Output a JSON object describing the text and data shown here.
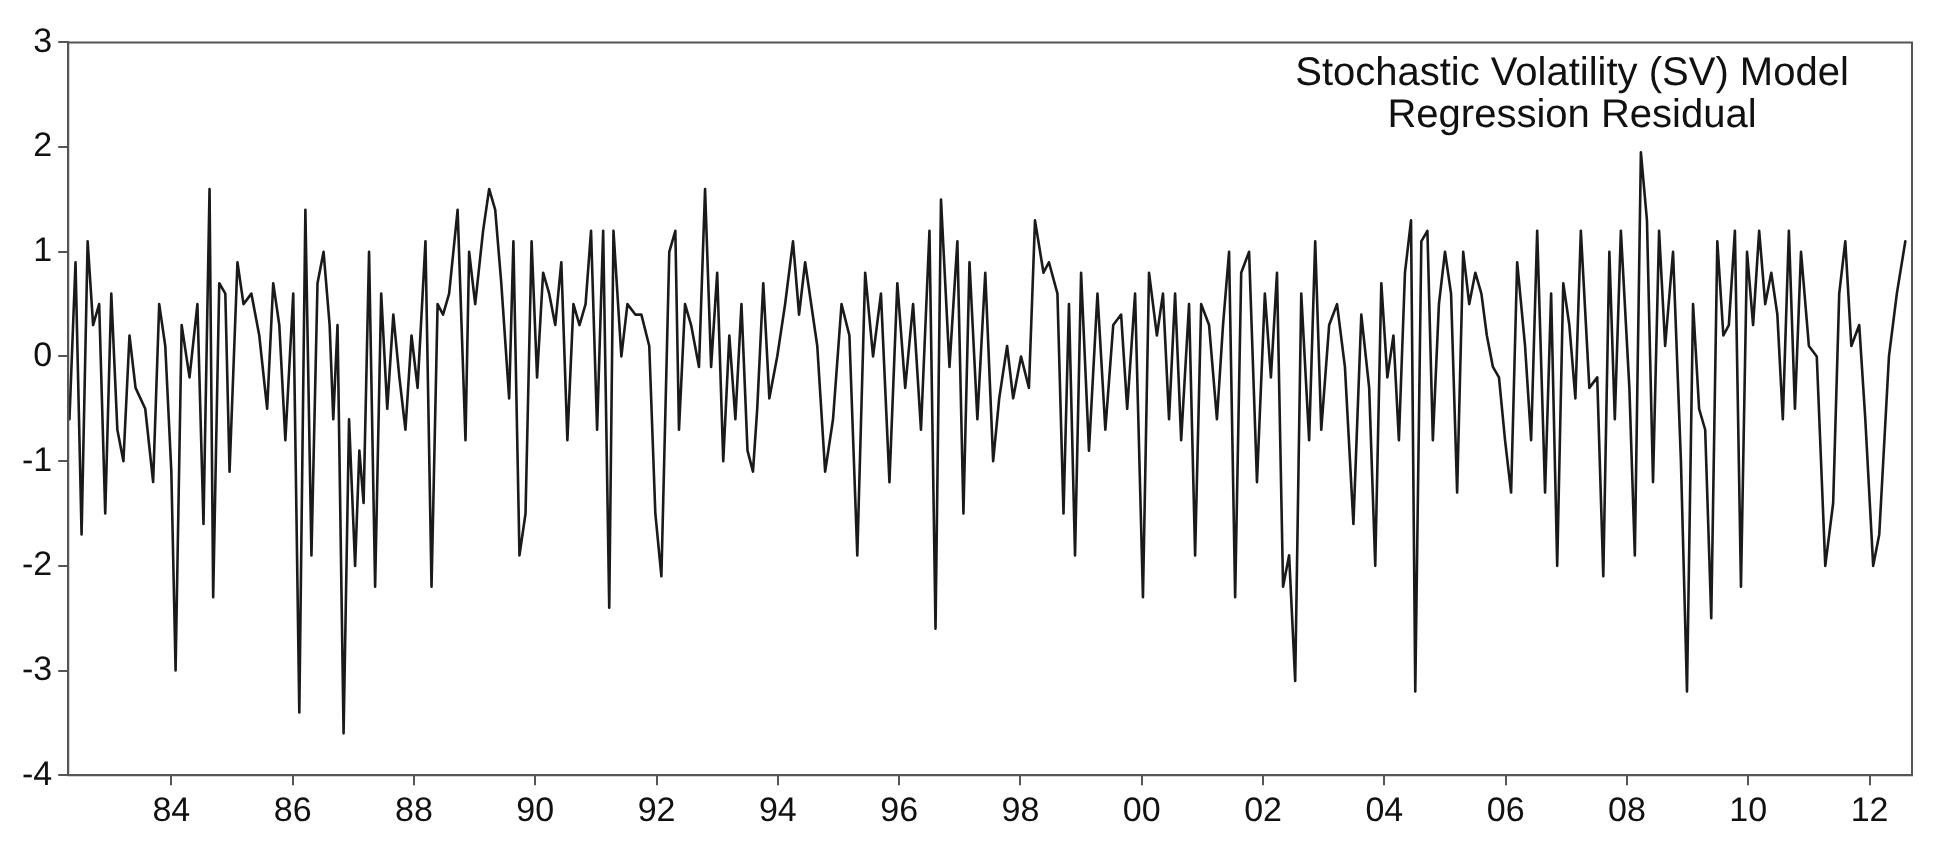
{
  "chart_data": {
    "type": "line",
    "annotations": [
      "Stochastic Volatility (SV) Model",
      "Regression Residual"
    ],
    "x": [
      1982.32,
      1982.42,
      1982.52,
      1982.62,
      1982.71,
      1982.81,
      1982.91,
      1983.01,
      1983.11,
      1983.21,
      1983.31,
      1983.41,
      1983.57,
      1983.7,
      1983.8,
      1983.9,
      1984.0,
      1984.07,
      1984.17,
      1984.3,
      1984.43,
      1984.53,
      1984.63,
      1984.69,
      1984.79,
      1984.89,
      1984.96,
      1985.09,
      1985.19,
      1985.32,
      1985.45,
      1985.58,
      1985.68,
      1985.78,
      1985.88,
      1986.01,
      1986.11,
      1986.21,
      1986.31,
      1986.41,
      1986.51,
      1986.61,
      1986.67,
      1986.74,
      1986.84,
      1986.93,
      1987.03,
      1987.1,
      1987.17,
      1987.26,
      1987.36,
      1987.46,
      1987.56,
      1987.66,
      1987.76,
      1987.86,
      1987.96,
      1988.06,
      1988.19,
      1988.29,
      1988.39,
      1988.48,
      1988.58,
      1988.72,
      1988.85,
      1988.91,
      1989.01,
      1989.14,
      1989.24,
      1989.34,
      1989.44,
      1989.57,
      1989.64,
      1989.74,
      1989.84,
      1989.94,
      1990.03,
      1990.13,
      1990.23,
      1990.33,
      1990.43,
      1990.53,
      1990.63,
      1990.73,
      1990.83,
      1990.92,
      1991.02,
      1991.12,
      1991.22,
      1991.29,
      1991.42,
      1991.52,
      1991.65,
      1991.75,
      1991.88,
      1991.98,
      1992.08,
      1992.21,
      1992.31,
      1992.37,
      1992.47,
      1992.57,
      1992.7,
      1992.8,
      1992.9,
      1993.0,
      1993.1,
      1993.2,
      1993.3,
      1993.4,
      1993.5,
      1993.59,
      1993.66,
      1993.76,
      1993.86,
      1993.99,
      1994.12,
      1994.25,
      1994.35,
      1994.45,
      1994.65,
      1994.78,
      1994.91,
      1995.05,
      1995.18,
      1995.31,
      1995.44,
      1995.57,
      1995.7,
      1995.84,
      1995.97,
      1996.1,
      1996.23,
      1996.36,
      1996.5,
      1996.6,
      1996.69,
      1996.83,
      1996.96,
      1997.06,
      1997.16,
      1997.29,
      1997.42,
      1997.55,
      1997.65,
      1997.78,
      1997.88,
      1998.01,
      1998.14,
      1998.24,
      1998.38,
      1998.47,
      1998.61,
      1998.71,
      1998.8,
      1998.9,
      1999.0,
      1999.13,
      1999.27,
      1999.4,
      1999.53,
      1999.66,
      1999.76,
      1999.89,
      2000.02,
      2000.12,
      2000.25,
      2000.35,
      2000.45,
      2000.55,
      2000.65,
      2000.78,
      2000.88,
      2000.98,
      2001.11,
      2001.24,
      2001.34,
      2001.44,
      2001.54,
      2001.64,
      2001.77,
      2001.9,
      2002.03,
      2002.13,
      2002.23,
      2002.33,
      2002.43,
      2002.53,
      2002.63,
      2002.76,
      2002.86,
      2002.96,
      2003.09,
      2003.22,
      2003.35,
      2003.49,
      2003.62,
      2003.75,
      2003.85,
      2003.95,
      2004.05,
      2004.15,
      2004.24,
      2004.34,
      2004.44,
      2004.51,
      2004.61,
      2004.71,
      2004.8,
      2004.9,
      2005.0,
      2005.1,
      2005.2,
      2005.3,
      2005.4,
      2005.5,
      2005.6,
      2005.69,
      2005.79,
      2005.89,
      2005.99,
      2006.09,
      2006.19,
      2006.32,
      2006.42,
      2006.52,
      2006.65,
      2006.75,
      2006.85,
      2006.95,
      2007.05,
      2007.15,
      2007.24,
      2007.38,
      2007.51,
      2007.61,
      2007.71,
      2007.8,
      2007.9,
      2008.04,
      2008.13,
      2008.23,
      2008.33,
      2008.43,
      2008.53,
      2008.63,
      2008.76,
      2008.89,
      2008.99,
      2009.09,
      2009.19,
      2009.29,
      2009.39,
      2009.49,
      2009.59,
      2009.68,
      2009.78,
      2009.88,
      2009.98,
      2010.08,
      2010.18,
      2010.28,
      2010.38,
      2010.48,
      2010.57,
      2010.67,
      2010.77,
      2010.87,
      2011.0,
      2011.13,
      2011.27,
      2011.4,
      2011.5,
      2011.6,
      2011.7,
      2011.83,
      2011.93,
      2012.06,
      2012.16,
      2012.32,
      2012.45,
      2012.59
    ],
    "series": [
      {
        "color": "#1a1a1a",
        "values": [
          -0.6,
          0.9,
          -1.7,
          1.1,
          0.3,
          0.5,
          -1.5,
          0.6,
          -0.7,
          -1.0,
          0.2,
          -0.3,
          -0.5,
          -1.2,
          0.5,
          0.1,
          -1.1,
          -3.0,
          0.3,
          -0.2,
          0.5,
          -1.6,
          1.6,
          -2.3,
          0.7,
          0.6,
          -1.1,
          0.9,
          0.5,
          0.6,
          0.2,
          -0.5,
          0.7,
          0.3,
          -0.8,
          0.6,
          -3.4,
          1.4,
          -1.9,
          0.7,
          1.0,
          0.3,
          -0.6,
          0.3,
          -3.6,
          -0.6,
          -2.0,
          -0.9,
          -1.4,
          1.0,
          -2.2,
          0.6,
          -0.5,
          0.4,
          -0.2,
          -0.7,
          0.2,
          -0.3,
          1.1,
          -2.2,
          0.5,
          0.4,
          0.6,
          1.4,
          -0.8,
          1.0,
          0.5,
          1.2,
          1.6,
          1.4,
          0.7,
          -0.4,
          1.1,
          -1.9,
          -1.5,
          1.1,
          -0.2,
          0.8,
          0.6,
          0.3,
          0.9,
          -0.8,
          0.5,
          0.3,
          0.5,
          1.2,
          -0.7,
          1.2,
          -2.4,
          1.2,
          0.0,
          0.5,
          0.4,
          0.4,
          0.1,
          -1.5,
          -2.1,
          1.0,
          1.2,
          -0.7,
          0.5,
          0.3,
          -0.1,
          1.6,
          -0.1,
          0.8,
          -1.0,
          0.2,
          -0.6,
          0.5,
          -0.9,
          -1.1,
          -0.5,
          0.7,
          -0.4,
          0.0,
          0.5,
          1.1,
          0.4,
          0.9,
          0.1,
          -1.1,
          -0.6,
          0.5,
          0.2,
          -1.9,
          0.8,
          0.0,
          0.6,
          -1.2,
          0.7,
          -0.3,
          0.5,
          -0.7,
          1.2,
          -2.6,
          1.5,
          -0.1,
          1.1,
          -1.5,
          0.9,
          -0.6,
          0.8,
          -1.0,
          -0.4,
          0.1,
          -0.4,
          0.0,
          -0.3,
          1.3,
          0.8,
          0.9,
          0.6,
          -1.5,
          0.5,
          -1.9,
          0.8,
          -0.9,
          0.6,
          -0.7,
          0.3,
          0.4,
          -0.5,
          0.6,
          -2.3,
          0.8,
          0.2,
          0.6,
          -0.6,
          0.6,
          -0.8,
          0.5,
          -1.9,
          0.5,
          0.3,
          -0.6,
          0.3,
          1.0,
          -2.3,
          0.8,
          1.0,
          -1.2,
          0.6,
          -0.2,
          0.8,
          -2.2,
          -1.9,
          -3.1,
          0.6,
          -0.8,
          1.1,
          -0.7,
          0.3,
          0.5,
          -0.1,
          -1.6,
          0.4,
          -0.3,
          -2.0,
          0.7,
          -0.2,
          0.2,
          -0.8,
          0.8,
          1.3,
          -3.2,
          1.1,
          1.2,
          -0.8,
          0.5,
          1.0,
          0.6,
          -1.3,
          1.0,
          0.5,
          0.8,
          0.6,
          0.2,
          -0.1,
          -0.2,
          -0.8,
          -1.3,
          0.9,
          0.1,
          -0.8,
          1.2,
          -1.3,
          0.6,
          -2.0,
          0.7,
          0.3,
          -0.4,
          1.2,
          -0.3,
          -0.2,
          -2.1,
          1.0,
          -0.6,
          1.2,
          -0.3,
          -1.9,
          1.95,
          1.3,
          -1.2,
          1.2,
          0.1,
          1.0,
          -1.0,
          -3.2,
          0.5,
          -0.5,
          -0.7,
          -2.5,
          1.1,
          0.2,
          0.3,
          1.2,
          -2.2,
          1.0,
          0.3,
          1.2,
          0.5,
          0.8,
          0.4,
          -0.6,
          1.2,
          -0.5,
          1.0,
          0.1,
          0.0,
          -2.0,
          -1.4,
          0.6,
          1.1,
          0.1,
          0.3,
          -0.6,
          -2.0,
          -1.7,
          0.0,
          0.6,
          1.1
        ]
      }
    ],
    "xlim": [
      1982.3,
      2012.7
    ],
    "xticks": [
      {
        "value": 1984,
        "label": "84"
      },
      {
        "value": 1986,
        "label": "86"
      },
      {
        "value": 1988,
        "label": "88"
      },
      {
        "value": 1990,
        "label": "90"
      },
      {
        "value": 1992,
        "label": "92"
      },
      {
        "value": 1994,
        "label": "94"
      },
      {
        "value": 1996,
        "label": "96"
      },
      {
        "value": 1998,
        "label": "98"
      },
      {
        "value": 2000,
        "label": "00"
      },
      {
        "value": 2002,
        "label": "02"
      },
      {
        "value": 2004,
        "label": "04"
      },
      {
        "value": 2006,
        "label": "06"
      },
      {
        "value": 2008,
        "label": "08"
      },
      {
        "value": 2010,
        "label": "10"
      },
      {
        "value": 2012,
        "label": "12"
      }
    ],
    "ylim": [
      -4,
      3
    ],
    "yticks": [
      -4,
      -3,
      -2,
      -1,
      0,
      1,
      2,
      3
    ],
    "legend": false,
    "grid": false,
    "marker": "none",
    "line_style": "solid"
  }
}
